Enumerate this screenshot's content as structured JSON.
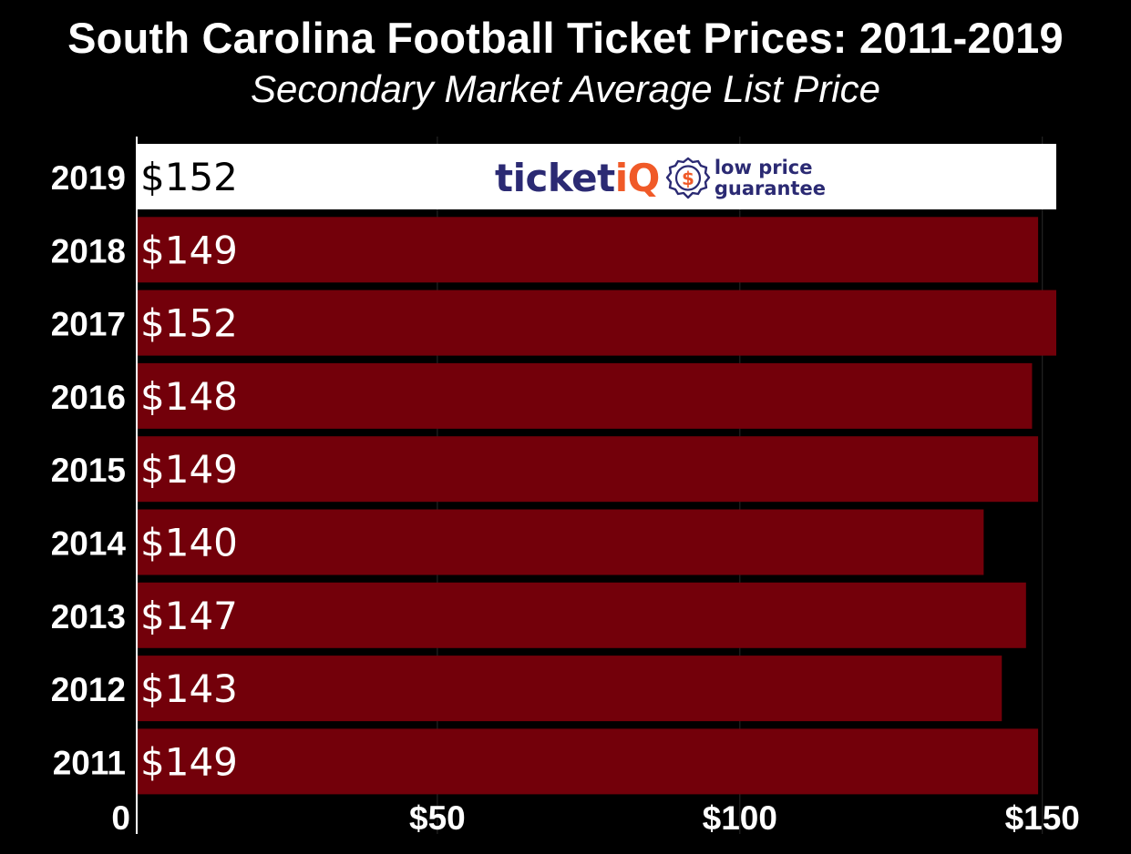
{
  "chart_data": {
    "type": "bar",
    "orientation": "horizontal",
    "title": "South Carolina Football Ticket Prices: 2011-2019",
    "subtitle": "Secondary Market Average List Price",
    "categories": [
      "2019",
      "2018",
      "2017",
      "2016",
      "2015",
      "2014",
      "2013",
      "2012",
      "2011"
    ],
    "values": [
      152,
      149,
      152,
      148,
      149,
      140,
      147,
      143,
      149
    ],
    "data_labels": [
      "$152",
      "$149",
      "$152",
      "$148",
      "$149",
      "$140",
      "$147",
      "$143",
      "$149"
    ],
    "x_ticks": [
      {
        "value": 0,
        "label": "0"
      },
      {
        "value": 50,
        "label": "$50"
      },
      {
        "value": 100,
        "label": "$100"
      },
      {
        "value": 150,
        "label": "$150"
      }
    ],
    "xlim": [
      0,
      152
    ],
    "xlabel": "",
    "ylabel": "",
    "grid": true,
    "highlight_category": "2019",
    "colors": {
      "background": "#000000",
      "bar": "#73000a",
      "highlight_bar": "#ffffff",
      "text": "#ffffff",
      "highlight_text": "#000000",
      "grid": "#2a2a2a",
      "axis": "#ffffff"
    }
  },
  "logo": {
    "word_ticket": "ticket",
    "word_iq": "iQ",
    "badge_symbol": "$",
    "tagline_line1": "low price",
    "tagline_line2": "guarantee",
    "colors": {
      "navy": "#2b2a73",
      "orange": "#f05a28"
    }
  }
}
